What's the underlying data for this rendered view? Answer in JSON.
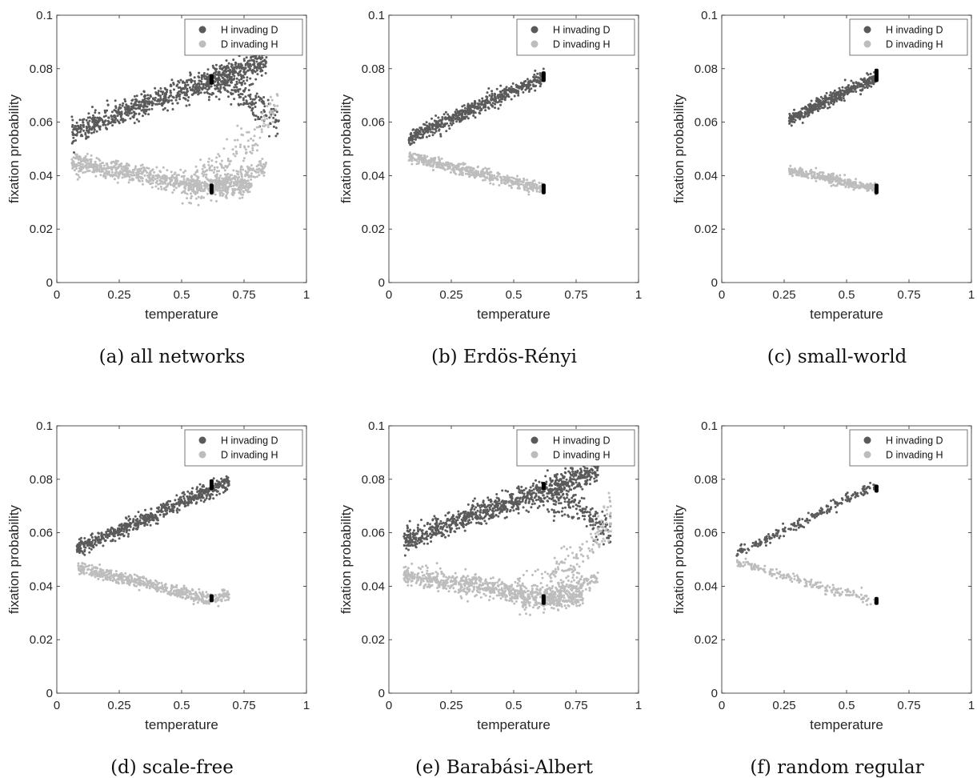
{
  "chart_data": [
    {
      "type": "scatter",
      "caption": "(a) all networks",
      "xlabel": "temperature",
      "ylabel": "fixation probability",
      "xlim": [
        0,
        1
      ],
      "ylim": [
        0,
        0.1
      ],
      "xticks": [
        "0",
        "0.25",
        "0.5",
        "0.75",
        "1"
      ],
      "yticks": [
        "0",
        "0.02",
        "0.04",
        "0.06",
        "0.08",
        "0.1"
      ],
      "legend_position": "top-right",
      "series": [
        {
          "name": "H invading D",
          "color": "#5a5a5a",
          "bands": [
            {
              "x": [
                0.06,
                0.62,
                0.84
              ],
              "y": [
                0.056,
                0.076,
                0.083
              ],
              "spread": 0.0022,
              "n": 900
            },
            {
              "x": [
                0.6,
                0.72,
                0.8,
                0.89
              ],
              "y": [
                0.074,
                0.072,
                0.066,
                0.06
              ],
              "spread": 0.003,
              "n": 200
            }
          ],
          "marker": {
            "x": 0.62,
            "y": [
              0.074,
              0.078
            ]
          }
        },
        {
          "name": "D invading H",
          "color": "#bdbdbd",
          "bands": [
            {
              "x": [
                0.06,
                0.35,
                0.62,
                0.78
              ],
              "y": [
                0.045,
                0.04,
                0.035,
                0.036
              ],
              "spread": 0.0018,
              "n": 800
            },
            {
              "x": [
                0.62,
                0.84
              ],
              "y": [
                0.036,
                0.043
              ],
              "spread": 0.0015,
              "n": 150
            },
            {
              "x": [
                0.5,
                0.65,
                0.78,
                0.89
              ],
              "y": [
                0.035,
                0.042,
                0.052,
                0.068
              ],
              "spread": 0.0035,
              "n": 200
            }
          ],
          "marker": {
            "x": 0.62,
            "y": [
              0.033,
              0.037
            ]
          }
        }
      ]
    },
    {
      "type": "scatter",
      "caption": "(b) Erdös-Rényi",
      "xlabel": "temperature",
      "ylabel": "fixation probability",
      "xlim": [
        0,
        1
      ],
      "ylim": [
        0,
        0.1
      ],
      "xticks": [
        "0",
        "0.25",
        "0.5",
        "0.75",
        "1"
      ],
      "yticks": [
        "0",
        "0.02",
        "0.04",
        "0.06",
        "0.08",
        "0.1"
      ],
      "legend_position": "top-right",
      "series": [
        {
          "name": "H invading D",
          "color": "#5a5a5a",
          "bands": [
            {
              "x": [
                0.08,
                0.62
              ],
              "y": [
                0.054,
                0.077
              ],
              "spread": 0.0014,
              "n": 600
            }
          ],
          "marker": {
            "x": 0.62,
            "y": [
              0.075,
              0.079
            ]
          }
        },
        {
          "name": "D invading H",
          "color": "#bdbdbd",
          "bands": [
            {
              "x": [
                0.08,
                0.62
              ],
              "y": [
                0.047,
                0.035
              ],
              "spread": 0.0011,
              "n": 500
            }
          ],
          "marker": {
            "x": 0.62,
            "y": [
              0.033,
              0.037
            ]
          }
        }
      ]
    },
    {
      "type": "scatter",
      "caption": "(c) small-world",
      "xlabel": "temperature",
      "ylabel": "fixation probability",
      "xlim": [
        0,
        1
      ],
      "ylim": [
        0,
        0.1
      ],
      "xticks": [
        "0",
        "0.25",
        "0.5",
        "0.75",
        "1"
      ],
      "yticks": [
        "0",
        "0.02",
        "0.04",
        "0.06",
        "0.08",
        "0.1"
      ],
      "legend_position": "top-right",
      "series": [
        {
          "name": "H invading D",
          "color": "#5a5a5a",
          "bands": [
            {
              "x": [
                0.27,
                0.62
              ],
              "y": [
                0.061,
                0.077
              ],
              "spread": 0.0012,
              "n": 450
            }
          ],
          "marker": {
            "x": 0.62,
            "y": [
              0.075,
              0.08
            ]
          }
        },
        {
          "name": "D invading H",
          "color": "#bdbdbd",
          "bands": [
            {
              "x": [
                0.27,
                0.62
              ],
              "y": [
                0.042,
                0.035
              ],
              "spread": 0.0009,
              "n": 380
            }
          ],
          "marker": {
            "x": 0.62,
            "y": [
              0.033,
              0.037
            ]
          }
        }
      ]
    },
    {
      "type": "scatter",
      "caption": "(d) scale-free",
      "xlabel": "temperature",
      "ylabel": "fixation probability",
      "xlim": [
        0,
        1
      ],
      "ylim": [
        0,
        0.1
      ],
      "xticks": [
        "0",
        "0.25",
        "0.5",
        "0.75",
        "1"
      ],
      "yticks": [
        "0",
        "0.02",
        "0.04",
        "0.06",
        "0.08",
        "0.1"
      ],
      "legend_position": "top-right",
      "series": [
        {
          "name": "H invading D",
          "color": "#5a5a5a",
          "bands": [
            {
              "x": [
                0.08,
                0.69
              ],
              "y": [
                0.054,
                0.079
              ],
              "spread": 0.0014,
              "n": 650
            }
          ],
          "marker": {
            "x": 0.62,
            "y": [
              0.076,
              0.08
            ]
          }
        },
        {
          "name": "D invading H",
          "color": "#bdbdbd",
          "bands": [
            {
              "x": [
                0.08,
                0.62,
                0.69
              ],
              "y": [
                0.047,
                0.035,
                0.037
              ],
              "spread": 0.0011,
              "n": 550
            }
          ],
          "marker": {
            "x": 0.62,
            "y": [
              0.034,
              0.037
            ]
          }
        }
      ]
    },
    {
      "type": "scatter",
      "caption": "(e) Barabási-Albert",
      "xlabel": "temperature",
      "ylabel": "fixation probability",
      "xlim": [
        0,
        1
      ],
      "ylim": [
        0,
        0.1
      ],
      "xticks": [
        "0",
        "0.25",
        "0.5",
        "0.75",
        "1"
      ],
      "yticks": [
        "0",
        "0.02",
        "0.04",
        "0.06",
        "0.08",
        "0.1"
      ],
      "legend_position": "top-right",
      "series": [
        {
          "name": "H invading D",
          "color": "#5a5a5a",
          "bands": [
            {
              "x": [
                0.06,
                0.62,
                0.84
              ],
              "y": [
                0.057,
                0.076,
                0.083
              ],
              "spread": 0.0022,
              "n": 900
            },
            {
              "x": [
                0.6,
                0.72,
                0.8,
                0.89
              ],
              "y": [
                0.074,
                0.072,
                0.066,
                0.06
              ],
              "spread": 0.003,
              "n": 200
            }
          ],
          "marker": {
            "x": 0.62,
            "y": [
              0.076,
              0.079
            ]
          }
        },
        {
          "name": "D invading H",
          "color": "#bdbdbd",
          "bands": [
            {
              "x": [
                0.06,
                0.35,
                0.62,
                0.78
              ],
              "y": [
                0.044,
                0.04,
                0.035,
                0.036
              ],
              "spread": 0.0018,
              "n": 800
            },
            {
              "x": [
                0.62,
                0.84
              ],
              "y": [
                0.036,
                0.043
              ],
              "spread": 0.0015,
              "n": 150
            },
            {
              "x": [
                0.5,
                0.65,
                0.78,
                0.89
              ],
              "y": [
                0.035,
                0.042,
                0.052,
                0.068
              ],
              "spread": 0.0035,
              "n": 200
            }
          ],
          "marker": {
            "x": 0.62,
            "y": [
              0.033,
              0.037
            ]
          }
        }
      ]
    },
    {
      "type": "scatter",
      "caption": "(f) random regular",
      "xlabel": "temperature",
      "ylabel": "fixation probability",
      "xlim": [
        0,
        1
      ],
      "ylim": [
        0,
        0.1
      ],
      "xticks": [
        "0",
        "0.25",
        "0.5",
        "0.75",
        "1"
      ],
      "yticks": [
        "0",
        "0.02",
        "0.04",
        "0.06",
        "0.08",
        "0.1"
      ],
      "legend_position": "top-right",
      "series": [
        {
          "name": "H invading D",
          "color": "#5a5a5a",
          "bands": [
            {
              "x": [
                0.06,
                0.62
              ],
              "y": [
                0.052,
                0.078
              ],
              "spread": 0.001,
              "n": 220
            }
          ],
          "marker": {
            "x": 0.62,
            "y": [
              0.075,
              0.078
            ]
          }
        },
        {
          "name": "D invading H",
          "color": "#bdbdbd",
          "bands": [
            {
              "x": [
                0.06,
                0.62
              ],
              "y": [
                0.049,
                0.034
              ],
              "spread": 0.0009,
              "n": 200
            }
          ],
          "marker": {
            "x": 0.62,
            "y": [
              0.033,
              0.036
            ]
          }
        }
      ]
    }
  ]
}
